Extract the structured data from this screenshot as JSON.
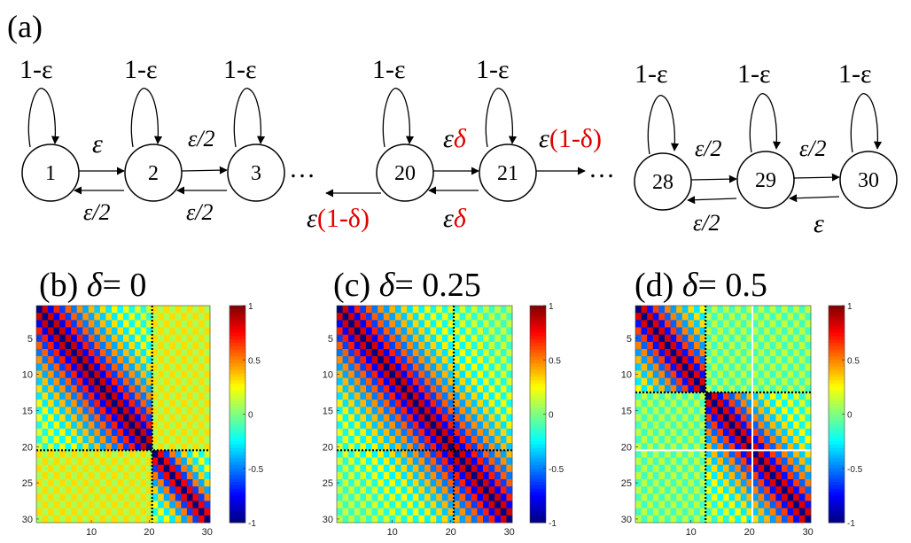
{
  "panel_a": {
    "tag": "(a)",
    "self_loop_label": "1-ε",
    "ellipsis": "…",
    "nodes": [
      "1",
      "2",
      "3",
      "20",
      "21",
      "28",
      "29",
      "30"
    ],
    "edge_labels": {
      "e_1_2": "ε",
      "e_2_3": "ε/2",
      "e_2_1": "ε/2",
      "e_3_2": "ε/2",
      "e_20_21_eps": "ε",
      "e_20_21_delta": "δ",
      "e_21_out_eps": "ε",
      "e_21_out_paren": "(1-δ)",
      "e_20_out_eps": "ε",
      "e_20_out_paren": "(1-δ)",
      "e_21_20_eps": "ε",
      "e_21_20_delta": "δ",
      "e_28_29": "ε/2",
      "e_29_30": "ε/2",
      "e_29_28": "ε/2",
      "e_30_29": "ε"
    }
  },
  "panels": [
    {
      "tag": "(b)",
      "symbol": "δ",
      "eq": "= 0"
    },
    {
      "tag": "(c)",
      "symbol": "δ",
      "eq": "= 0.25"
    },
    {
      "tag": "(d)",
      "symbol": "δ",
      "eq": "= 0.5"
    }
  ],
  "colors": {
    "accent_red": "#e00000",
    "node_stroke": "#000000"
  },
  "chart_data": [
    {
      "type": "heatmap",
      "title": "(b) δ = 0",
      "size": 30,
      "delta": 0,
      "xticks": [
        10,
        20,
        30
      ],
      "yticks": [
        5,
        10,
        15,
        20,
        25,
        30
      ],
      "colorbar": {
        "range": [
          -1,
          1
        ],
        "ticks": [
          "1",
          "0.5",
          "0",
          "-0.5",
          "-1"
        ],
        "colormap": "jet"
      },
      "block_boundaries": [
        20
      ],
      "separator_style": "dotted-black"
    },
    {
      "type": "heatmap",
      "title": "(c) δ = 0.25",
      "size": 30,
      "delta": 0.25,
      "xticks": [
        10,
        20,
        30
      ],
      "yticks": [
        5,
        10,
        15,
        20,
        25,
        30
      ],
      "colorbar": {
        "range": [
          -1,
          1
        ],
        "ticks": [
          "1",
          "0.5",
          "0",
          "-0.5",
          "-1"
        ],
        "colormap": "jet"
      },
      "block_boundaries": [
        20
      ],
      "separator_style": "dotted-black"
    },
    {
      "type": "heatmap",
      "title": "(d) δ = 0.5",
      "size": 30,
      "delta": 0.5,
      "xticks": [
        10,
        20,
        30
      ],
      "yticks": [
        5,
        10,
        15,
        20,
        25,
        30
      ],
      "colorbar": {
        "range": [
          -1,
          1
        ],
        "ticks": [
          "1",
          "0.5",
          "0",
          "-0.5",
          "-1"
        ],
        "colormap": "jet"
      },
      "block_boundaries": [
        12,
        20
      ],
      "separator_style": "dotted-black at 12, solid-white at 20"
    }
  ]
}
